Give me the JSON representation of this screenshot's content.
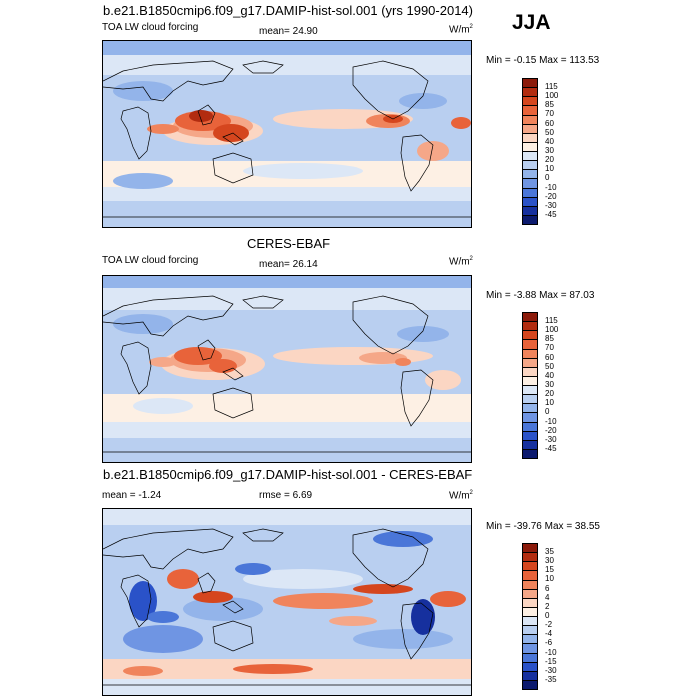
{
  "season": "JJA",
  "variable_label": "TOA LW cloud forcing",
  "units_label": "W/m",
  "units_exp": "2",
  "panels": [
    {
      "title": "b.e21.B1850cmip6.f09_g17.DAMIP-hist-sol.001 (yrs 1990-2014)",
      "stat_text": "mean=  24.90",
      "range_text": "Min =  -0.15 Max = 113.53"
    },
    {
      "title": "CERES-EBAF",
      "stat_text": "mean=  26.14",
      "range_text": "Min =  -3.88 Max =  87.03"
    },
    {
      "title": "b.e21.B1850cmip6.f09_g17.DAMIP-hist-sol.001 - CERES-EBAF",
      "stat_text": "mean =  -1.24",
      "stat2_text": "rmse =   6.69",
      "range_text": "Min = -39.76 Max =  38.55"
    }
  ],
  "colorbar_abs": {
    "levels": [
      "115",
      "100",
      "85",
      "70",
      "60",
      "50",
      "40",
      "30",
      "20",
      "10",
      "0",
      "-10",
      "-20",
      "-30",
      "-45"
    ],
    "colors": [
      "#8b1a0a",
      "#b22c10",
      "#d5461e",
      "#e8633a",
      "#f0845c",
      "#f5a788",
      "#fbd6c3",
      "#fdf0e4",
      "#dce7f6",
      "#b9cff0",
      "#93b4ea",
      "#6f95e3",
      "#4a76d8",
      "#2a52c8",
      "#16309e",
      "#0c1a6e"
    ]
  },
  "colorbar_diff": {
    "levels": [
      "35",
      "30",
      "15",
      "10",
      "6",
      "4",
      "2",
      "0",
      "-2",
      "-4",
      "-6",
      "-10",
      "-15",
      "-30",
      "-35"
    ],
    "colors": [
      "#8b1a0a",
      "#b22c10",
      "#d5461e",
      "#e8633a",
      "#f0845c",
      "#f5a788",
      "#fbd6c3",
      "#fdf0e4",
      "#dce7f6",
      "#b9cff0",
      "#93b4ea",
      "#6f95e3",
      "#4a76d8",
      "#2a52c8",
      "#16309e",
      "#0c1a6e"
    ]
  }
}
